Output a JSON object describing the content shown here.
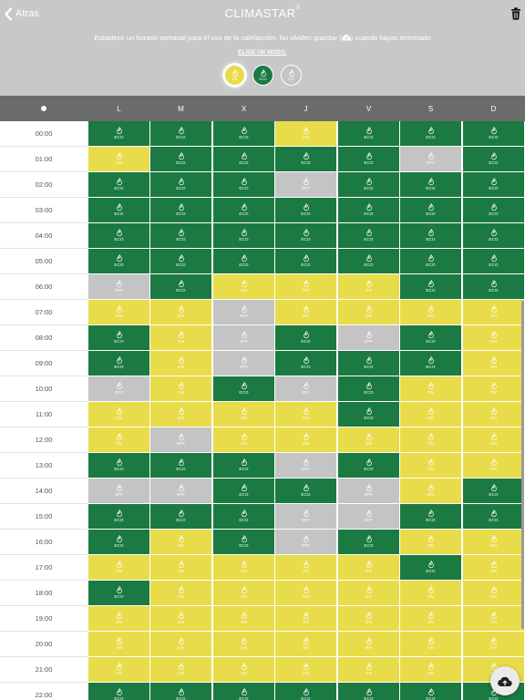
{
  "header": {
    "back_label": "Atras",
    "title": "CLIMASTAR",
    "title_mark": "®",
    "instruction_before_icon": "Establece un horario semanal para el uso de la calefacción. No olvides guardar (",
    "instruction_after_icon": ") cuando hayas terminado",
    "mode_label": "ELIGE UN MODO:",
    "modes": [
      {
        "label": "ON",
        "color": "#e8dc4a",
        "selected": true
      },
      {
        "label": "ECO",
        "color": "#1a7a42",
        "selected": false
      },
      {
        "label": "OFF",
        "color": "#c4c4c4",
        "selected": false
      }
    ]
  },
  "colors": {
    "ON": "#e8dc4a",
    "ECO": "#1a7a42",
    "OFF": "#c4c4c4",
    "header_bg": "#c8c8c8",
    "day_header_bg": "#6b6b6b"
  },
  "icons": {
    "back": "chevron-left-icon",
    "delete": "trash-icon",
    "save": "cloud-upload-icon",
    "mode": "flame-icon",
    "time": "clock-icon"
  },
  "days": [
    "L",
    "M",
    "X",
    "J",
    "V",
    "S",
    "D"
  ],
  "schedule": [
    {
      "hour": "00:00",
      "modes": [
        "ECO",
        "ECO",
        "ECO",
        "ON",
        "ECO",
        "ECO",
        "ECO"
      ]
    },
    {
      "hour": "01:00",
      "modes": [
        "ON",
        "ECO",
        "ECO",
        "ECO",
        "ECO",
        "OFF",
        "ECO"
      ]
    },
    {
      "hour": "02:00",
      "modes": [
        "ECO",
        "ECO",
        "ECO",
        "OFF",
        "ECO",
        "ECO",
        "ECO"
      ]
    },
    {
      "hour": "03:00",
      "modes": [
        "ECO",
        "ECO",
        "ECO",
        "ECO",
        "ECO",
        "ECO",
        "ECO"
      ]
    },
    {
      "hour": "04:00",
      "modes": [
        "ECO",
        "ECO",
        "ECO",
        "ECO",
        "ECO",
        "ECO",
        "ECO"
      ]
    },
    {
      "hour": "05:00",
      "modes": [
        "ECO",
        "ECO",
        "ECO",
        "ECO",
        "ECO",
        "ECO",
        "ECO"
      ]
    },
    {
      "hour": "06:00",
      "modes": [
        "OFF",
        "ECO",
        "ON",
        "ON",
        "ON",
        "ECO",
        "ECO"
      ]
    },
    {
      "hour": "07:00",
      "modes": [
        "ON",
        "ON",
        "OFF",
        "ON",
        "ON",
        "ON",
        "ON"
      ]
    },
    {
      "hour": "08:00",
      "modes": [
        "ECO",
        "ON",
        "OFF",
        "ECO",
        "OFF",
        "ECO",
        "ON"
      ]
    },
    {
      "hour": "09:00",
      "modes": [
        "ECO",
        "ON",
        "OFF",
        "ECO",
        "ECO",
        "ECO",
        "ON"
      ]
    },
    {
      "hour": "10:00",
      "modes": [
        "OFF",
        "ON",
        "ECO",
        "OFF",
        "ECO",
        "ON",
        "ON"
      ]
    },
    {
      "hour": "11:00",
      "modes": [
        "ON",
        "ON",
        "ON",
        "ON",
        "ECO",
        "ON",
        "ON"
      ]
    },
    {
      "hour": "12:00",
      "modes": [
        "ON",
        "OFF",
        "ON",
        "ON",
        "ON",
        "ON",
        "ON"
      ]
    },
    {
      "hour": "13:00",
      "modes": [
        "ECO",
        "ECO",
        "ECO",
        "OFF",
        "ECO",
        "ON",
        "ON"
      ]
    },
    {
      "hour": "14:00",
      "modes": [
        "OFF",
        "OFF",
        "ECO",
        "ECO",
        "OFF",
        "ON",
        "ECO"
      ]
    },
    {
      "hour": "15:00",
      "modes": [
        "ECO",
        "ECO",
        "ECO",
        "OFF",
        "OFF",
        "ECO",
        "ECO"
      ]
    },
    {
      "hour": "16:00",
      "modes": [
        "ECO",
        "ON",
        "ECO",
        "OFF",
        "ECO",
        "ON",
        "ON"
      ]
    },
    {
      "hour": "17:00",
      "modes": [
        "ON",
        "ON",
        "ON",
        "ON",
        "ON",
        "ECO",
        "ON"
      ]
    },
    {
      "hour": "18:00",
      "modes": [
        "ECO",
        "ON",
        "ON",
        "ON",
        "ON",
        "ON",
        "ON"
      ]
    },
    {
      "hour": "19:00",
      "modes": [
        "ON",
        "ON",
        "ON",
        "ON",
        "ON",
        "ON",
        "ON"
      ]
    },
    {
      "hour": "20:00",
      "modes": [
        "ON",
        "ON",
        "ON",
        "ON",
        "ON",
        "ON",
        "ON"
      ]
    },
    {
      "hour": "21:00",
      "modes": [
        "ON",
        "ON",
        "ON",
        "ON",
        "ON",
        "ON",
        "ON"
      ]
    },
    {
      "hour": "22:00",
      "modes": [
        "ECO",
        "ECO",
        "ECO",
        "ECO",
        "ECO",
        "ECO",
        "ECO"
      ]
    }
  ]
}
